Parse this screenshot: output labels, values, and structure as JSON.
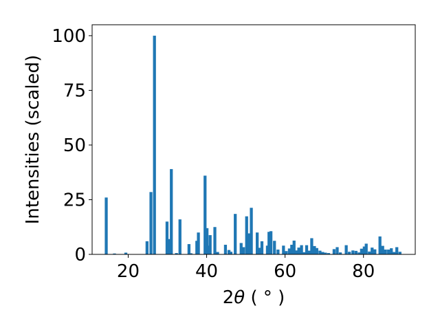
{
  "chart_data": {
    "type": "bar",
    "xlabel": "2θ (°)",
    "xlabel_parts": {
      "pre": "2",
      "theta": "θ",
      "unit": " ( ° )"
    },
    "ylabel": "Intensities (scaled)",
    "xlim": [
      10.8,
      93.2
    ],
    "ylim": [
      0,
      105
    ],
    "xticks": [
      20,
      40,
      60,
      80
    ],
    "yticks": [
      0,
      25,
      50,
      75,
      100
    ],
    "grid": false,
    "bar_color": "#1f77b4",
    "bar_width": 0.75,
    "x": [
      14.4,
      16.5,
      19.4,
      24.8,
      25.8,
      26.7,
      29.9,
      30.5,
      31.0,
      32.3,
      33.2,
      35.5,
      36.0,
      37.5,
      37.9,
      39.6,
      40.1,
      40.6,
      40.9,
      42.1,
      42.8,
      44.8,
      45.7,
      46.2,
      47.3,
      48.8,
      49.4,
      50.2,
      50.8,
      51.4,
      52.9,
      53.6,
      54.1,
      55.5,
      55.9,
      56.4,
      57.3,
      58.2,
      59.6,
      60.3,
      61.1,
      61.7,
      62.3,
      62.8,
      63.5,
      64.2,
      64.8,
      65.5,
      66.1,
      66.8,
      67.5,
      68.1,
      68.9,
      69.6,
      70.3,
      71.1,
      72.5,
      73.3,
      74.1,
      75.6,
      76.4,
      77.3,
      78.1,
      78.9,
      79.5,
      80.2,
      80.7,
      81.5,
      82.2,
      82.9,
      84.2,
      84.9,
      85.6,
      86.4,
      87.1,
      87.8,
      88.5,
      89.3
    ],
    "values": [
      26,
      0.4,
      0.8,
      6,
      28.5,
      100,
      15,
      7,
      39,
      0.6,
      16,
      4.7,
      0.5,
      6.2,
      10,
      36,
      12,
      4,
      8.8,
      12.5,
      1.1,
      4.4,
      2,
      1.2,
      18.5,
      5.2,
      3.3,
      17.4,
      9.6,
      21.3,
      10,
      3,
      6,
      4,
      10.3,
      10.6,
      6.2,
      2.2,
      4,
      1.5,
      2.7,
      4.4,
      6.3,
      1.8,
      3.1,
      4.2,
      1,
      4.2,
      1.7,
      7.4,
      3.8,
      2.9,
      1.7,
      1.1,
      0.8,
      0.6,
      2.4,
      3.3,
      0.9,
      4.2,
      1.2,
      1.8,
      1.6,
      0.9,
      2.6,
      3.6,
      4.9,
      1.3,
      3.1,
      2.3,
      8.2,
      3.9,
      2.2,
      2.2,
      2.8,
      1.1,
      3.3,
      1.2
    ]
  }
}
